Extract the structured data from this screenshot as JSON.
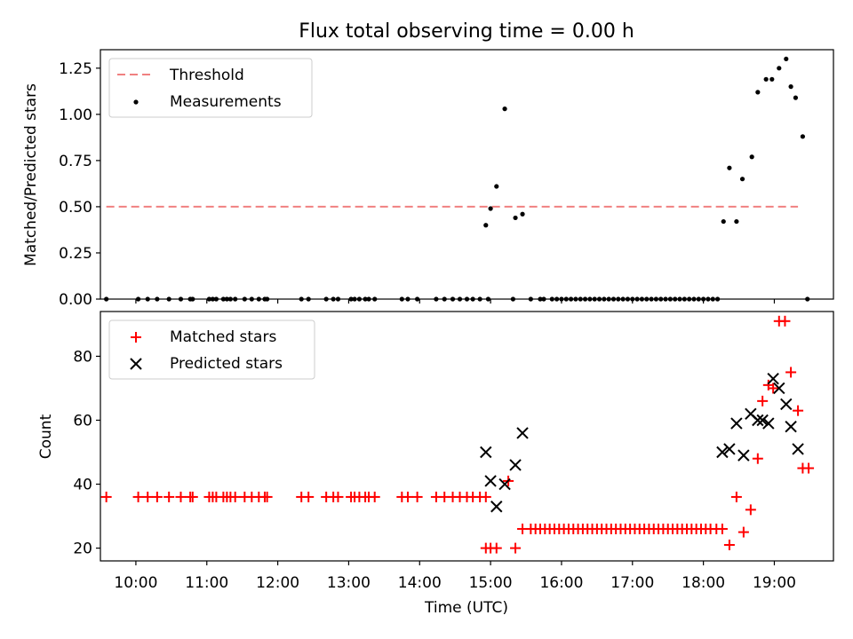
{
  "chart_data": [
    {
      "type": "scatter",
      "title": "Flux total observing time = 0.00 h",
      "ylabel": "Matched/Predicted stars",
      "xlim": [
        "09:30",
        "19:50"
      ],
      "ylim": [
        0,
        1.35
      ],
      "yticks": [
        "0.00",
        "0.25",
        "0.50",
        "0.75",
        "1.00",
        "1.25"
      ],
      "legend": "top-left",
      "threshold": {
        "name": "Threshold",
        "value": 0.5,
        "x_start": "09:35",
        "x_end": "19:20",
        "color": "#f08080",
        "style": "dashed"
      },
      "series": [
        {
          "name": "Measurements",
          "color": "#000000",
          "marker": "dot",
          "x": [
            "09:35",
            "10:02",
            "10:10",
            "10:18",
            "10:28",
            "10:38",
            "10:46",
            "10:48",
            "11:02",
            "11:05",
            "11:08",
            "11:14",
            "11:17",
            "11:20",
            "11:24",
            "11:32",
            "11:38",
            "11:44",
            "11:49",
            "11:51",
            "12:20",
            "12:26",
            "12:41",
            "12:47",
            "12:51",
            "13:02",
            "13:05",
            "13:09",
            "13:14",
            "13:17",
            "13:22",
            "13:45",
            "13:50",
            "13:58",
            "14:14",
            "14:21",
            "14:28",
            "14:34",
            "14:40",
            "14:45",
            "14:51",
            "14:56",
            "14:58",
            "15:00",
            "15:05",
            "15:12",
            "15:19",
            "15:21",
            "15:27",
            "15:34",
            "15:42",
            "15:45",
            "15:52",
            "15:56",
            "16:00",
            "16:04",
            "16:08",
            "16:12",
            "16:16",
            "16:20",
            "16:24",
            "16:28",
            "16:32",
            "16:36",
            "16:40",
            "16:44",
            "16:48",
            "16:52",
            "16:56",
            "17:00",
            "17:04",
            "17:08",
            "17:12",
            "17:16",
            "17:20",
            "17:24",
            "17:28",
            "17:32",
            "17:36",
            "17:40",
            "17:44",
            "17:48",
            "17:52",
            "17:56",
            "18:00",
            "18:04",
            "18:08",
            "18:12",
            "18:17",
            "18:22",
            "18:28",
            "18:33",
            "18:41",
            "18:46",
            "18:53",
            "18:58",
            "19:04",
            "19:10",
            "19:14",
            "19:18",
            "19:24",
            "19:28"
          ],
          "y": [
            0,
            0,
            0,
            0,
            0,
            0,
            0,
            0,
            0,
            0,
            0,
            0,
            0,
            0,
            0,
            0,
            0,
            0,
            0,
            0,
            0,
            0,
            0,
            0,
            0,
            0,
            0,
            0,
            0,
            0,
            0,
            0,
            0,
            0,
            0,
            0,
            0,
            0,
            0,
            0,
            0,
            0.4,
            0,
            0.49,
            0.61,
            1.03,
            0,
            0.44,
            0.46,
            0,
            0,
            0,
            0,
            0,
            0,
            0,
            0,
            0,
            0,
            0,
            0,
            0,
            0,
            0,
            0,
            0,
            0,
            0,
            0,
            0,
            0,
            0,
            0,
            0,
            0,
            0,
            0,
            0,
            0,
            0,
            0,
            0,
            0,
            0,
            0,
            0,
            0,
            0,
            0.42,
            0.71,
            0.42,
            0.65,
            0.77,
            1.12,
            1.19,
            1.19,
            1.25,
            1.3,
            1.15,
            1.09,
            0.88,
            0
          ]
        }
      ]
    },
    {
      "type": "scatter",
      "xlabel": "Time (UTC)",
      "ylabel": "Count",
      "xlim": [
        "09:30",
        "19:50"
      ],
      "ylim": [
        16,
        94
      ],
      "xticks": [
        "10:00",
        "11:00",
        "12:00",
        "13:00",
        "14:00",
        "15:00",
        "16:00",
        "17:00",
        "18:00",
        "19:00"
      ],
      "yticks": [
        "20",
        "40",
        "60",
        "80"
      ],
      "legend": "top-left",
      "series": [
        {
          "name": "Matched stars",
          "color": "#ff0000",
          "marker": "plus",
          "x": [
            "09:35",
            "10:02",
            "10:10",
            "10:18",
            "10:28",
            "10:38",
            "10:46",
            "10:48",
            "11:02",
            "11:05",
            "11:08",
            "11:14",
            "11:17",
            "11:20",
            "11:24",
            "11:32",
            "11:38",
            "11:44",
            "11:49",
            "11:51",
            "12:20",
            "12:26",
            "12:41",
            "12:47",
            "12:51",
            "13:02",
            "13:05",
            "13:09",
            "13:14",
            "13:17",
            "13:22",
            "13:45",
            "13:50",
            "13:58",
            "14:14",
            "14:21",
            "14:28",
            "14:34",
            "14:40",
            "14:45",
            "14:51",
            "14:56",
            "14:56",
            "15:00",
            "15:05",
            "15:15",
            "15:21",
            "15:27",
            "15:34",
            "15:38",
            "15:42",
            "15:46",
            "15:50",
            "15:54",
            "15:58",
            "16:02",
            "16:06",
            "16:10",
            "16:14",
            "16:18",
            "16:22",
            "16:26",
            "16:30",
            "16:34",
            "16:38",
            "16:42",
            "16:46",
            "16:50",
            "16:54",
            "16:58",
            "17:02",
            "17:06",
            "17:10",
            "17:14",
            "17:18",
            "17:22",
            "17:26",
            "17:30",
            "17:34",
            "17:38",
            "17:42",
            "17:46",
            "17:50",
            "17:54",
            "17:58",
            "18:02",
            "18:06",
            "18:11",
            "18:16",
            "18:22",
            "18:28",
            "18:34",
            "18:40",
            "18:46",
            "18:50",
            "18:55",
            "18:59",
            "19:04",
            "19:09",
            "19:14",
            "19:20",
            "19:24",
            "19:29"
          ],
          "y": [
            36,
            36,
            36,
            36,
            36,
            36,
            36,
            36,
            36,
            36,
            36,
            36,
            36,
            36,
            36,
            36,
            36,
            36,
            36,
            36,
            36,
            36,
            36,
            36,
            36,
            36,
            36,
            36,
            36,
            36,
            36,
            36,
            36,
            36,
            36,
            36,
            36,
            36,
            36,
            36,
            36,
            36,
            20,
            20,
            20,
            41,
            20,
            26,
            26,
            26,
            26,
            26,
            26,
            26,
            26,
            26,
            26,
            26,
            26,
            26,
            26,
            26,
            26,
            26,
            26,
            26,
            26,
            26,
            26,
            26,
            26,
            26,
            26,
            26,
            26,
            26,
            26,
            26,
            26,
            26,
            26,
            26,
            26,
            26,
            26,
            26,
            26,
            26,
            26,
            21,
            36,
            25,
            32,
            48,
            66,
            71,
            70,
            91,
            91,
            75,
            63,
            45,
            45
          ]
        },
        {
          "name": "Predicted stars",
          "color": "#000000",
          "marker": "x",
          "x": [
            "14:56",
            "15:00",
            "15:05",
            "15:12",
            "15:21",
            "15:27",
            "18:16",
            "18:22",
            "18:28",
            "18:34",
            "18:40",
            "18:46",
            "18:50",
            "18:55",
            "18:59",
            "19:04",
            "19:10",
            "19:14",
            "19:20"
          ],
          "y": [
            50,
            41,
            33,
            40,
            46,
            56,
            50,
            51,
            59,
            49,
            62,
            60,
            60,
            59,
            73,
            70,
            65,
            58,
            51
          ]
        }
      ]
    }
  ]
}
